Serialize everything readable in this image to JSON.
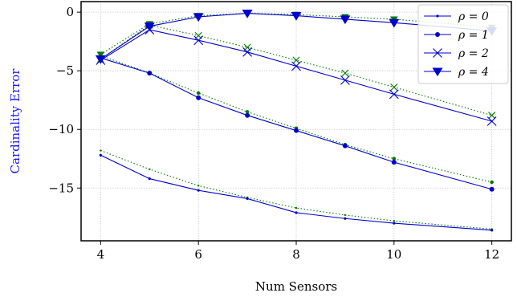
{
  "chart_data": {
    "type": "line",
    "xlabel": "Num Sensors",
    "ylabel": "Cardinality Error",
    "xlim": [
      3.6,
      12.4
    ],
    "ylim": [
      -19.5,
      0.9
    ],
    "xticks": [
      4,
      6,
      8,
      10,
      12
    ],
    "yticks": [
      0,
      -5,
      -10,
      -15
    ],
    "x": [
      4,
      5,
      6,
      7,
      8,
      9,
      10,
      12
    ],
    "grid": true,
    "legend_position": "top-right",
    "colors": {
      "solid": "#0000cc",
      "dotted": "#007a00",
      "grid": "#c8c8c8",
      "ylabel": "#1a1aff"
    },
    "series": [
      {
        "name": "ρ = 0",
        "legend_symbol": "ρ",
        "legend_value": "= 0",
        "marker": "dot-small",
        "solid": [
          -12.2,
          -14.2,
          -15.2,
          -15.9,
          -17.1,
          -17.6,
          -18.0,
          -18.6
        ],
        "dotted": [
          -11.8,
          -13.4,
          -14.8,
          -15.8,
          -16.7,
          -17.3,
          -17.8,
          -18.5
        ]
      },
      {
        "name": "ρ = 1",
        "legend_symbol": "ρ",
        "legend_value": "= 1",
        "marker": "circle",
        "solid": [
          -3.9,
          -5.2,
          -7.3,
          -8.8,
          -10.1,
          -11.4,
          -12.8,
          -15.1
        ],
        "dotted": [
          -3.7,
          -5.2,
          -6.9,
          -8.5,
          -9.9,
          -11.3,
          -12.5,
          -14.5
        ]
      },
      {
        "name": "ρ = 2",
        "legend_symbol": "ρ",
        "legend_value": "= 2",
        "marker": "x",
        "solid": [
          -4.1,
          -1.5,
          -2.4,
          -3.4,
          -4.6,
          -5.8,
          -7.0,
          -9.3
        ],
        "dotted": [
          -4.0,
          -1.1,
          -2.0,
          -3.0,
          -4.1,
          -5.2,
          -6.4,
          -8.8
        ]
      },
      {
        "name": "ρ = 4",
        "legend_symbol": "ρ",
        "legend_value": "= 4",
        "marker": "triangle-down",
        "solid": [
          -4.0,
          -1.2,
          -0.4,
          -0.1,
          -0.3,
          -0.6,
          -0.9,
          -1.6
        ],
        "dotted": [
          -3.6,
          -1.0,
          -0.3,
          -0.1,
          -0.2,
          -0.4,
          -0.6,
          -1.3
        ]
      }
    ]
  }
}
